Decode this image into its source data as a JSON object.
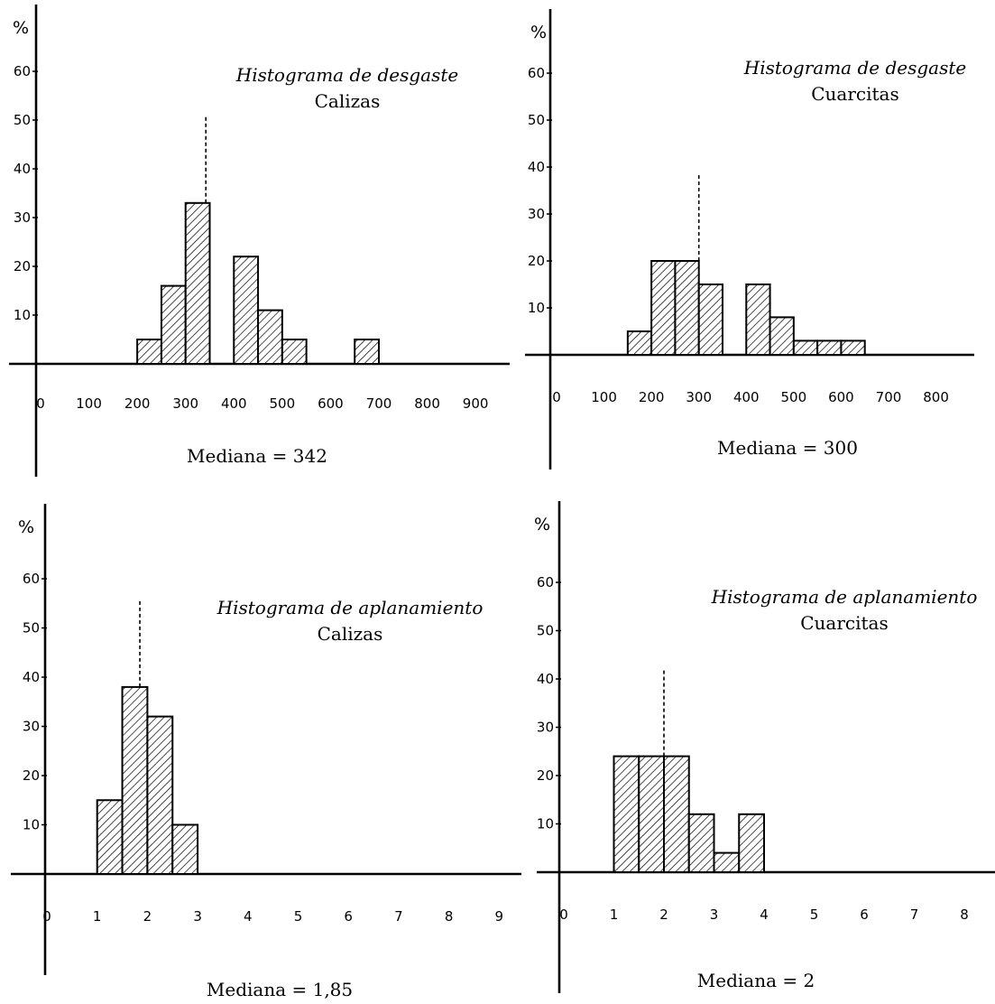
{
  "chart_data": [
    {
      "type": "bar",
      "title": "Histograma de desgaste",
      "subtitle": "Calizas",
      "ylabel": "%",
      "x_ticks": [
        0,
        100,
        200,
        300,
        400,
        500,
        600,
        700,
        800,
        900
      ],
      "y_ticks": [
        10,
        20,
        30,
        40,
        50,
        60
      ],
      "xlim": [
        0,
        950
      ],
      "ylim": [
        0,
        70
      ],
      "bins": [
        {
          "from": 200,
          "to": 250,
          "value": 5
        },
        {
          "from": 250,
          "to": 300,
          "value": 16
        },
        {
          "from": 300,
          "to": 350,
          "value": 33
        },
        {
          "from": 400,
          "to": 450,
          "value": 22
        },
        {
          "from": 450,
          "to": 500,
          "value": 11
        },
        {
          "from": 500,
          "to": 550,
          "value": 5
        },
        {
          "from": 650,
          "to": 700,
          "value": 5
        }
      ],
      "median_value": 342,
      "median_label": "Mediana = 342"
    },
    {
      "type": "bar",
      "title": "Histograma de desgaste",
      "subtitle": "Cuarcitas",
      "ylabel": "%",
      "x_ticks": [
        0,
        100,
        200,
        300,
        400,
        500,
        600,
        700,
        800
      ],
      "y_ticks": [
        10,
        20,
        30,
        40,
        50,
        60
      ],
      "xlim": [
        0,
        850
      ],
      "ylim": [
        0,
        70
      ],
      "bins": [
        {
          "from": 150,
          "to": 200,
          "value": 5
        },
        {
          "from": 200,
          "to": 250,
          "value": 20
        },
        {
          "from": 250,
          "to": 300,
          "value": 20
        },
        {
          "from": 300,
          "to": 350,
          "value": 15
        },
        {
          "from": 400,
          "to": 450,
          "value": 15
        },
        {
          "from": 450,
          "to": 500,
          "value": 8
        },
        {
          "from": 500,
          "to": 550,
          "value": 3
        },
        {
          "from": 550,
          "to": 600,
          "value": 3
        },
        {
          "from": 600,
          "to": 650,
          "value": 3
        }
      ],
      "median_value": 300,
      "median_label": "Mediana = 300"
    },
    {
      "type": "bar",
      "title": "Histograma de aplanamiento",
      "subtitle": "Calizas",
      "ylabel": "%",
      "x_ticks": [
        0,
        1,
        2,
        3,
        4,
        5,
        6,
        7,
        8,
        9
      ],
      "y_ticks": [
        10,
        20,
        30,
        40,
        50,
        60
      ],
      "xlim": [
        0,
        9.5
      ],
      "ylim": [
        0,
        70
      ],
      "bins": [
        {
          "from": 1.0,
          "to": 1.5,
          "value": 15
        },
        {
          "from": 1.5,
          "to": 2.0,
          "value": 38
        },
        {
          "from": 2.0,
          "to": 2.5,
          "value": 32
        },
        {
          "from": 2.5,
          "to": 3.0,
          "value": 10
        }
      ],
      "median_value": 1.85,
      "median_label": "Mediana = 1,85"
    },
    {
      "type": "bar",
      "title": "Histograma de aplanamiento",
      "subtitle": "Cuarcitas",
      "ylabel": "%",
      "x_ticks": [
        0,
        1,
        2,
        3,
        4,
        5,
        6,
        7,
        8
      ],
      "y_ticks": [
        10,
        20,
        30,
        40,
        50,
        60
      ],
      "xlim": [
        0,
        8.5
      ],
      "ylim": [
        0,
        70
      ],
      "bins": [
        {
          "from": 1.0,
          "to": 1.5,
          "value": 24
        },
        {
          "from": 1.5,
          "to": 2.0,
          "value": 24
        },
        {
          "from": 2.0,
          "to": 2.5,
          "value": 24
        },
        {
          "from": 2.5,
          "to": 3.0,
          "value": 12
        },
        {
          "from": 3.0,
          "to": 3.5,
          "value": 4
        },
        {
          "from": 3.5,
          "to": 4.0,
          "value": 12
        }
      ],
      "median_value": 2,
      "median_label": "Mediana = 2"
    }
  ]
}
